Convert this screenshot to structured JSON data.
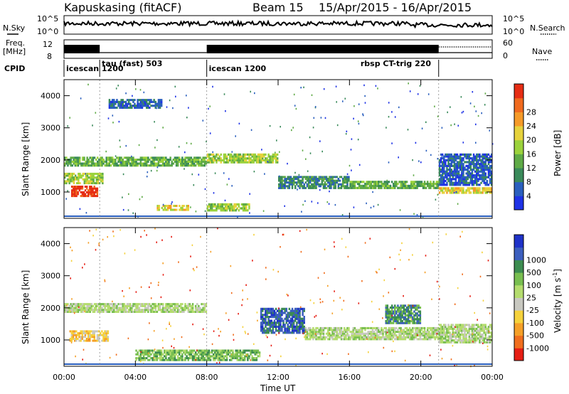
{
  "header": {
    "station": "Kapuskasing (fitACF)",
    "beam": "Beam 15",
    "dates": "15/Apr/2015 - 16/Apr/2015"
  },
  "labels": {
    "nsky": "N.Sky",
    "freq_line1": "Freq.",
    "freq_line2": "[MHz]",
    "cpid": "CPID",
    "nsearch": "N.Search",
    "nave": "Nave",
    "sky_tick_top": "10^5",
    "sky_tick_bottom": "10^0",
    "freq_tick_top": "12",
    "freq_tick_bottom": "8",
    "nave_tick_top": "60",
    "nave_tick_bottom": "0"
  },
  "modes": [
    {
      "name": "icescan",
      "extra": "1200",
      "start_hour": 0,
      "end_hour": 2
    },
    {
      "name": "tau (fast)",
      "extra": "503",
      "start_hour": 2,
      "end_hour": 8
    },
    {
      "name": "icescan",
      "extra": "1200",
      "start_hour": 8,
      "end_hour": 21
    },
    {
      "name": "rbsp CT-trig",
      "extra": "220",
      "start_hour": 16.5,
      "end_hour": 21
    }
  ],
  "colors": {
    "power": [
      "#1e32e6",
      "#2a5fbe",
      "#3a8a5a",
      "#5faa46",
      "#9bd23c",
      "#e6d23c",
      "#f59a28",
      "#f06a1e",
      "#e62d14"
    ],
    "velocity": [
      "#1e32c8",
      "#3c5fbe",
      "#3c8c50",
      "#78be50",
      "#b4dc6e",
      "#c8c8c0",
      "#f5d23c",
      "#f5a028",
      "#f06e1e",
      "#e61e14"
    ]
  },
  "chart_data": [
    {
      "type": "heatmap",
      "name": "power",
      "xlabel": "",
      "ylabel": "Slant Range [km]",
      "xlim": [
        0,
        24
      ],
      "ylim": [
        180,
        4500
      ],
      "colorbar_label": "Power [dB]",
      "colorbar_ticks": [
        4,
        8,
        12,
        16,
        20,
        24,
        28
      ],
      "bands": [
        {
          "t0": 0.0,
          "t1": 2.2,
          "r0": 1250,
          "r1": 1600,
          "level": 4
        },
        {
          "t0": 0.4,
          "t1": 1.9,
          "r0": 850,
          "r1": 1200,
          "level": 8
        },
        {
          "t0": 0.0,
          "t1": 8.0,
          "r0": 1800,
          "r1": 2100,
          "level": 3
        },
        {
          "t0": 2.5,
          "t1": 5.5,
          "r0": 3600,
          "r1": 3900,
          "level": 1
        },
        {
          "t0": 5.2,
          "t1": 7.0,
          "r0": 420,
          "r1": 600,
          "level": 5
        },
        {
          "t0": 8.0,
          "t1": 12.0,
          "r0": 1900,
          "r1": 2200,
          "level": 4
        },
        {
          "t0": 8.0,
          "t1": 10.5,
          "r0": 400,
          "r1": 650,
          "level": 4
        },
        {
          "t0": 12.0,
          "t1": 16.0,
          "r0": 1100,
          "r1": 1500,
          "level": 2
        },
        {
          "t0": 16.0,
          "t1": 21.0,
          "r0": 1100,
          "r1": 1350,
          "level": 3
        },
        {
          "t0": 21.0,
          "t1": 24.0,
          "r0": 950,
          "r1": 1150,
          "level": 5
        },
        {
          "t0": 21.0,
          "t1": 24.0,
          "r0": 1200,
          "r1": 2200,
          "level": 1
        }
      ]
    },
    {
      "type": "heatmap",
      "name": "velocity",
      "xlabel": "Time UT",
      "ylabel": "Slant Range [km]",
      "xlim": [
        0,
        24
      ],
      "ylim": [
        180,
        4500
      ],
      "xticks": [
        "00:00",
        "04:00",
        "08:00",
        "12:00",
        "16:00",
        "20:00",
        "00:00"
      ],
      "yticks": [
        1000,
        2000,
        3000,
        4000
      ],
      "colorbar_label": "Velocity [m s-1]",
      "colorbar_ticks": [
        1000,
        500,
        100,
        25,
        -25,
        -100,
        -500,
        -1000
      ],
      "bands": [
        {
          "t0": 0.0,
          "t1": 8.0,
          "r0": 1850,
          "r1": 2150,
          "level": 5
        },
        {
          "t0": 0.3,
          "t1": 2.5,
          "r0": 950,
          "r1": 1300,
          "level": 3
        },
        {
          "t0": 4.0,
          "t1": 11.0,
          "r0": 350,
          "r1": 700,
          "level": 6
        },
        {
          "t0": 11.0,
          "t1": 13.5,
          "r0": 1200,
          "r1": 2000,
          "level": 8
        },
        {
          "t0": 13.5,
          "t1": 21.0,
          "r0": 1000,
          "r1": 1400,
          "level": 5
        },
        {
          "t0": 18.0,
          "t1": 20.0,
          "r0": 1500,
          "r1": 2100,
          "level": 7
        },
        {
          "t0": 21.0,
          "t1": 24.0,
          "r0": 900,
          "r1": 1500,
          "level": 5
        }
      ]
    }
  ],
  "axis": {
    "xticks": [
      "00:00",
      "04:00",
      "08:00",
      "12:00",
      "16:00",
      "20:00",
      "00:00"
    ],
    "xlabel": "Time UT",
    "ylabel": "Slant Range [km]",
    "yticks": [
      "1000",
      "2000",
      "3000",
      "4000"
    ],
    "power_label": "Power [dB]",
    "power_ticks": [
      "4",
      "8",
      "12",
      "16",
      "20",
      "24",
      "28"
    ],
    "velocity_label": "Velocity [m s",
    "velocity_label_sup": "-1",
    "velocity_label_end": "]",
    "velocity_ticks": [
      "1000",
      "500",
      "100",
      "25",
      "-25",
      "-100",
      "-500",
      "-1000"
    ]
  }
}
